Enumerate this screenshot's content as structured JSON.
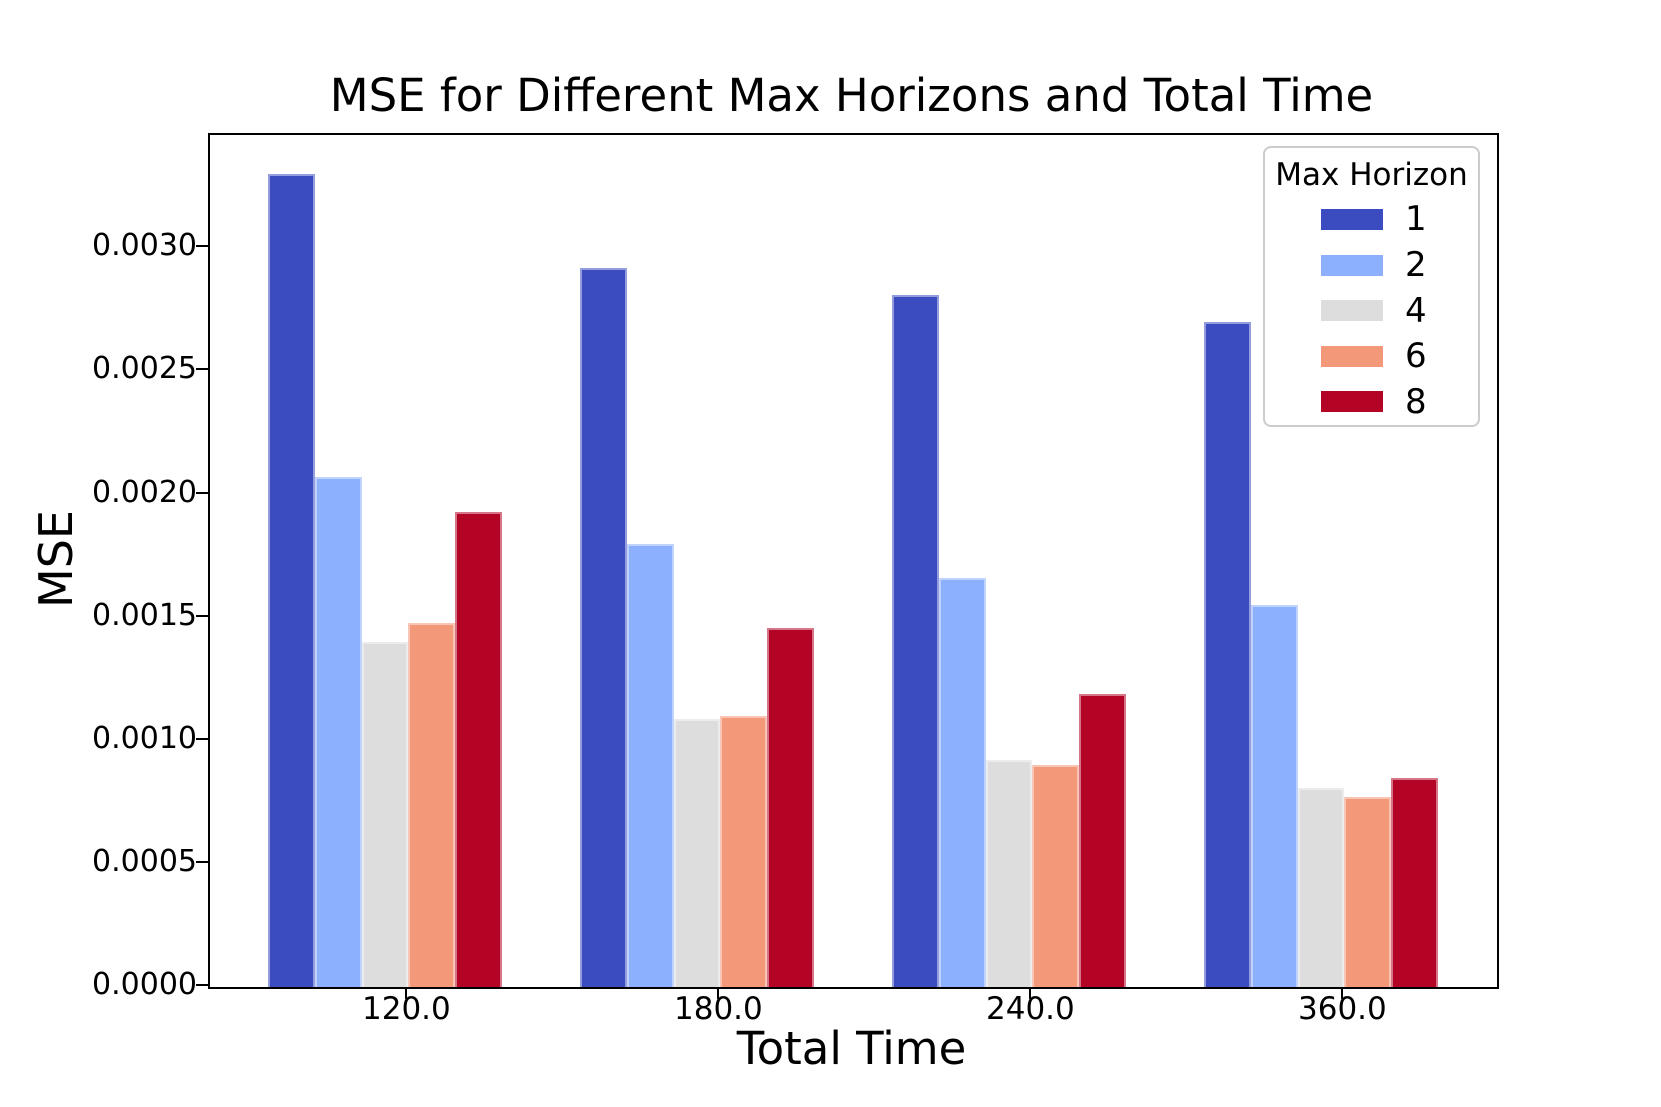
{
  "chart_data": {
    "type": "bar",
    "title": "MSE for Different Max Horizons and Total Time",
    "xlabel": "Total Time",
    "ylabel": "MSE",
    "categories": [
      "120.0",
      "180.0",
      "240.0",
      "360.0"
    ],
    "series": [
      {
        "name": "1",
        "color": "#3b4cc0",
        "values": [
          0.0033,
          0.00292,
          0.00281,
          0.0027
        ]
      },
      {
        "name": "2",
        "color": "#8db0fe",
        "values": [
          0.00207,
          0.0018,
          0.00166,
          0.00155
        ]
      },
      {
        "name": "4",
        "color": "#dddddd",
        "values": [
          0.0014,
          0.00109,
          0.00092,
          0.00081
        ]
      },
      {
        "name": "6",
        "color": "#f4987a",
        "values": [
          0.00148,
          0.0011,
          0.0009,
          0.00077
        ]
      },
      {
        "name": "8",
        "color": "#b40426",
        "values": [
          0.00193,
          0.00146,
          0.00119,
          0.00085
        ]
      }
    ],
    "legend": {
      "title": "Max Horizon",
      "entries": [
        "1",
        "2",
        "4",
        "6",
        "8"
      ],
      "position": "upper right"
    },
    "y_ticks": [
      "0.0000",
      "0.0005",
      "0.0010",
      "0.0015",
      "0.0020",
      "0.0025",
      "0.0030"
    ],
    "ylim": [
      0,
      0.00346
    ],
    "grid": false
  }
}
